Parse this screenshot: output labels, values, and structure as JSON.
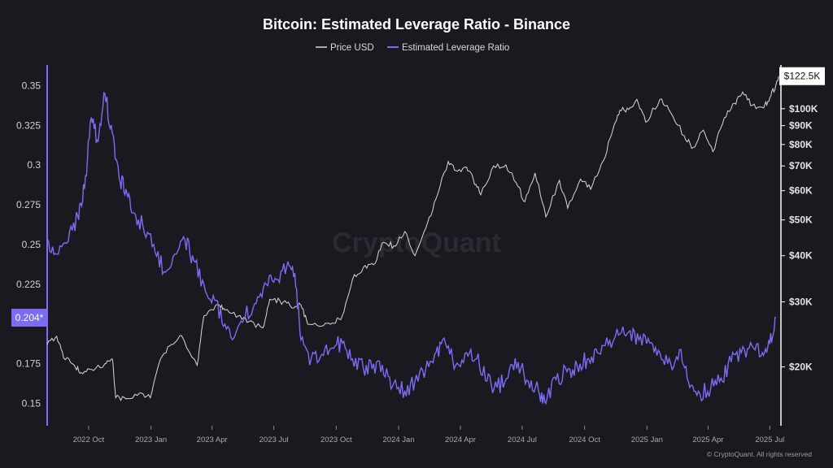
{
  "chart_data": {
    "type": "line",
    "title": "Bitcoin: Estimated Leverage Ratio - Binance",
    "legend": {
      "placement": "top-center",
      "entries": [
        {
          "name": "Price USD",
          "color": "#d9d9d9"
        },
        {
          "name": "Estimated Leverage Ratio",
          "color": "#7b6cf6"
        }
      ]
    },
    "watermark": "CryptoQuant",
    "copyright": "© CryptoQuant. All rights reserved",
    "x_axis": {
      "type": "date",
      "range": [
        "2022-08-01",
        "2025-07-15"
      ],
      "ticks": [
        {
          "date": "2022-10-01",
          "label": "2022 Oct"
        },
        {
          "date": "2023-01-01",
          "label": "2023 Jan"
        },
        {
          "date": "2023-04-01",
          "label": "2023 Apr"
        },
        {
          "date": "2023-07-01",
          "label": "2023 Jul"
        },
        {
          "date": "2023-10-01",
          "label": "2023 Oct"
        },
        {
          "date": "2024-01-01",
          "label": "2024 Jan"
        },
        {
          "date": "2024-04-01",
          "label": "2024 Apr"
        },
        {
          "date": "2024-07-01",
          "label": "2024 Jul"
        },
        {
          "date": "2024-10-01",
          "label": "2024 Oct"
        },
        {
          "date": "2025-01-01",
          "label": "2025 Jan"
        },
        {
          "date": "2025-04-01",
          "label": "2025 Apr"
        },
        {
          "date": "2025-07-01",
          "label": "2025 Jul"
        }
      ]
    },
    "y_left": {
      "label": "",
      "scale": "linear",
      "range": [
        0.137,
        0.362
      ],
      "ticks": [
        {
          "value": 0.35,
          "label": "0.35"
        },
        {
          "value": 0.325,
          "label": "0.325"
        },
        {
          "value": 0.3,
          "label": "0.3"
        },
        {
          "value": 0.275,
          "label": "0.275"
        },
        {
          "value": 0.25,
          "label": "0.25"
        },
        {
          "value": 0.225,
          "label": "0.225"
        },
        {
          "value": 0.175,
          "label": "0.175"
        },
        {
          "value": 0.15,
          "label": "0.15"
        }
      ],
      "current_value_label": "0.204*",
      "current_value": 0.204
    },
    "y_right": {
      "label": "",
      "scale": "log",
      "range": [
        14000,
        130000
      ],
      "ticks": [
        {
          "value": 100000,
          "label": "$100K"
        },
        {
          "value": 90000,
          "label": "$90K"
        },
        {
          "value": 80000,
          "label": "$80K"
        },
        {
          "value": 70000,
          "label": "$70K"
        },
        {
          "value": 60000,
          "label": "$60K"
        },
        {
          "value": 50000,
          "label": "$50K"
        },
        {
          "value": 40000,
          "label": "$40K"
        },
        {
          "value": 30000,
          "label": "$30K"
        },
        {
          "value": 20000,
          "label": "$20K"
        }
      ],
      "current_value_label": "$122.5K",
      "current_value": 122500
    },
    "grid": false,
    "series": [
      {
        "name": "Estimated Leverage Ratio",
        "axis": "left",
        "color": "#7b6cf6",
        "points": [
          [
            "2022-08-01",
            0.254
          ],
          [
            "2022-08-15",
            0.244
          ],
          [
            "2022-09-01",
            0.252
          ],
          [
            "2022-09-15",
            0.268
          ],
          [
            "2022-09-25",
            0.285
          ],
          [
            "2022-10-05",
            0.33
          ],
          [
            "2022-10-15",
            0.315
          ],
          [
            "2022-10-25",
            0.345
          ],
          [
            "2022-11-05",
            0.32
          ],
          [
            "2022-11-15",
            0.292
          ],
          [
            "2022-11-25",
            0.285
          ],
          [
            "2022-12-05",
            0.27
          ],
          [
            "2022-12-20",
            0.262
          ],
          [
            "2023-01-05",
            0.25
          ],
          [
            "2023-01-20",
            0.233
          ],
          [
            "2023-02-05",
            0.244
          ],
          [
            "2023-02-20",
            0.253
          ],
          [
            "2023-03-05",
            0.24
          ],
          [
            "2023-03-20",
            0.225
          ],
          [
            "2023-04-05",
            0.215
          ],
          [
            "2023-04-20",
            0.2
          ],
          [
            "2023-05-05",
            0.193
          ],
          [
            "2023-05-20",
            0.205
          ],
          [
            "2023-06-05",
            0.213
          ],
          [
            "2023-06-20",
            0.225
          ],
          [
            "2023-07-05",
            0.228
          ],
          [
            "2023-07-20",
            0.236
          ],
          [
            "2023-08-01",
            0.232
          ],
          [
            "2023-08-10",
            0.19
          ],
          [
            "2023-08-25",
            0.178
          ],
          [
            "2023-09-10",
            0.181
          ],
          [
            "2023-09-25",
            0.185
          ],
          [
            "2023-10-10",
            0.188
          ],
          [
            "2023-10-25",
            0.178
          ],
          [
            "2023-11-10",
            0.172
          ],
          [
            "2023-11-25",
            0.175
          ],
          [
            "2023-12-10",
            0.168
          ],
          [
            "2023-12-25",
            0.163
          ],
          [
            "2024-01-10",
            0.158
          ],
          [
            "2024-01-25",
            0.164
          ],
          [
            "2024-02-10",
            0.172
          ],
          [
            "2024-02-25",
            0.182
          ],
          [
            "2024-03-10",
            0.188
          ],
          [
            "2024-03-25",
            0.174
          ],
          [
            "2024-04-10",
            0.182
          ],
          [
            "2024-04-25",
            0.178
          ],
          [
            "2024-05-10",
            0.164
          ],
          [
            "2024-05-25",
            0.16
          ],
          [
            "2024-06-10",
            0.166
          ],
          [
            "2024-06-25",
            0.176
          ],
          [
            "2024-07-10",
            0.164
          ],
          [
            "2024-07-25",
            0.158
          ],
          [
            "2024-08-05",
            0.15
          ],
          [
            "2024-08-20",
            0.165
          ],
          [
            "2024-09-05",
            0.17
          ],
          [
            "2024-09-20",
            0.174
          ],
          [
            "2024-10-05",
            0.178
          ],
          [
            "2024-10-20",
            0.182
          ],
          [
            "2024-11-05",
            0.187
          ],
          [
            "2024-11-20",
            0.193
          ],
          [
            "2024-12-05",
            0.195
          ],
          [
            "2024-12-20",
            0.19
          ],
          [
            "2025-01-05",
            0.188
          ],
          [
            "2025-01-20",
            0.182
          ],
          [
            "2025-02-05",
            0.175
          ],
          [
            "2025-02-20",
            0.184
          ],
          [
            "2025-03-05",
            0.16
          ],
          [
            "2025-03-20",
            0.156
          ],
          [
            "2025-04-05",
            0.16
          ],
          [
            "2025-04-20",
            0.166
          ],
          [
            "2025-05-05",
            0.176
          ],
          [
            "2025-05-20",
            0.182
          ],
          [
            "2025-06-05",
            0.186
          ],
          [
            "2025-06-20",
            0.182
          ],
          [
            "2025-07-01",
            0.188
          ],
          [
            "2025-07-10",
            0.204
          ]
        ]
      },
      {
        "name": "Price USD",
        "axis": "right",
        "color": "#d9d9d9",
        "points": [
          [
            "2022-08-01",
            23000
          ],
          [
            "2022-08-15",
            24200
          ],
          [
            "2022-08-25",
            21200
          ],
          [
            "2022-09-10",
            20200
          ],
          [
            "2022-09-20",
            19300
          ],
          [
            "2022-10-05",
            19700
          ],
          [
            "2022-10-25",
            20400
          ],
          [
            "2022-11-05",
            21000
          ],
          [
            "2022-11-10",
            16500
          ],
          [
            "2022-11-25",
            16400
          ],
          [
            "2022-12-15",
            17000
          ],
          [
            "2022-12-31",
            16500
          ],
          [
            "2023-01-15",
            21000
          ],
          [
            "2023-01-31",
            23000
          ],
          [
            "2023-02-15",
            24300
          ],
          [
            "2023-03-10",
            20200
          ],
          [
            "2023-03-20",
            27500
          ],
          [
            "2023-04-10",
            29500
          ],
          [
            "2023-04-20",
            28500
          ],
          [
            "2023-05-10",
            27500
          ],
          [
            "2023-05-25",
            26500
          ],
          [
            "2023-06-15",
            25500
          ],
          [
            "2023-06-25",
            30500
          ],
          [
            "2023-07-10",
            30200
          ],
          [
            "2023-07-25",
            29300
          ],
          [
            "2023-08-10",
            29400
          ],
          [
            "2023-08-20",
            26100
          ],
          [
            "2023-09-10",
            25800
          ],
          [
            "2023-09-25",
            26300
          ],
          [
            "2023-10-10",
            27500
          ],
          [
            "2023-10-25",
            34500
          ],
          [
            "2023-11-10",
            37200
          ],
          [
            "2023-11-25",
            37800
          ],
          [
            "2023-12-10",
            43500
          ],
          [
            "2023-12-25",
            42500
          ],
          [
            "2024-01-10",
            46500
          ],
          [
            "2024-01-25",
            40000
          ],
          [
            "2024-02-10",
            47500
          ],
          [
            "2024-02-25",
            57000
          ],
          [
            "2024-03-14",
            72000
          ],
          [
            "2024-03-25",
            68000
          ],
          [
            "2024-04-10",
            69500
          ],
          [
            "2024-04-20",
            64500
          ],
          [
            "2024-05-01",
            58500
          ],
          [
            "2024-05-20",
            70000
          ],
          [
            "2024-06-07",
            70500
          ],
          [
            "2024-06-25",
            61500
          ],
          [
            "2024-07-05",
            56000
          ],
          [
            "2024-07-20",
            67000
          ],
          [
            "2024-08-05",
            51000
          ],
          [
            "2024-08-25",
            64000
          ],
          [
            "2024-09-06",
            53800
          ],
          [
            "2024-09-25",
            64500
          ],
          [
            "2024-10-10",
            60500
          ],
          [
            "2024-10-29",
            72500
          ],
          [
            "2024-11-12",
            88000
          ],
          [
            "2024-11-22",
            99000
          ],
          [
            "2024-12-05",
            99500
          ],
          [
            "2024-12-17",
            106000
          ],
          [
            "2024-12-30",
            92000
          ],
          [
            "2025-01-20",
            106000
          ],
          [
            "2025-02-05",
            97500
          ],
          [
            "2025-02-25",
            84500
          ],
          [
            "2025-03-10",
            78500
          ],
          [
            "2025-03-25",
            87500
          ],
          [
            "2025-04-08",
            76500
          ],
          [
            "2025-04-25",
            94500
          ],
          [
            "2025-05-10",
            103500
          ],
          [
            "2025-05-22",
            111000
          ],
          [
            "2025-06-05",
            102000
          ],
          [
            "2025-06-22",
            100500
          ],
          [
            "2025-07-01",
            107000
          ],
          [
            "2025-07-10",
            116000
          ],
          [
            "2025-07-14",
            122500
          ]
        ]
      }
    ]
  }
}
